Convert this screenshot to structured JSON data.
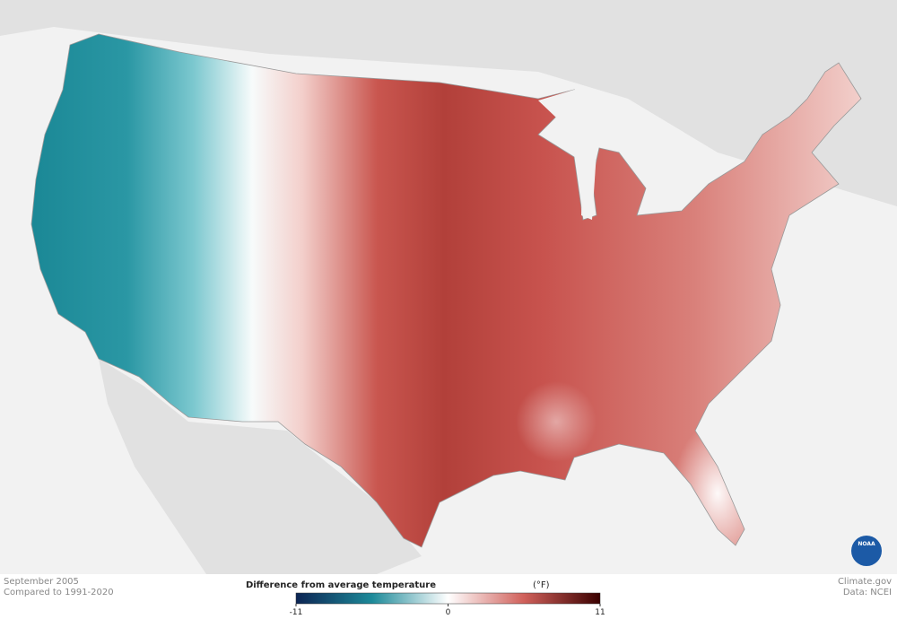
{
  "header": {
    "date": "September 2005",
    "baseline": "Compared to 1991-2020"
  },
  "legend": {
    "title": "Difference from average temperature",
    "unit": "(°F)",
    "ticks": [
      -11,
      0,
      11
    ]
  },
  "credits": {
    "site": "Climate.gov",
    "source": "Data: NCEI",
    "logo": "NOAA"
  }
}
